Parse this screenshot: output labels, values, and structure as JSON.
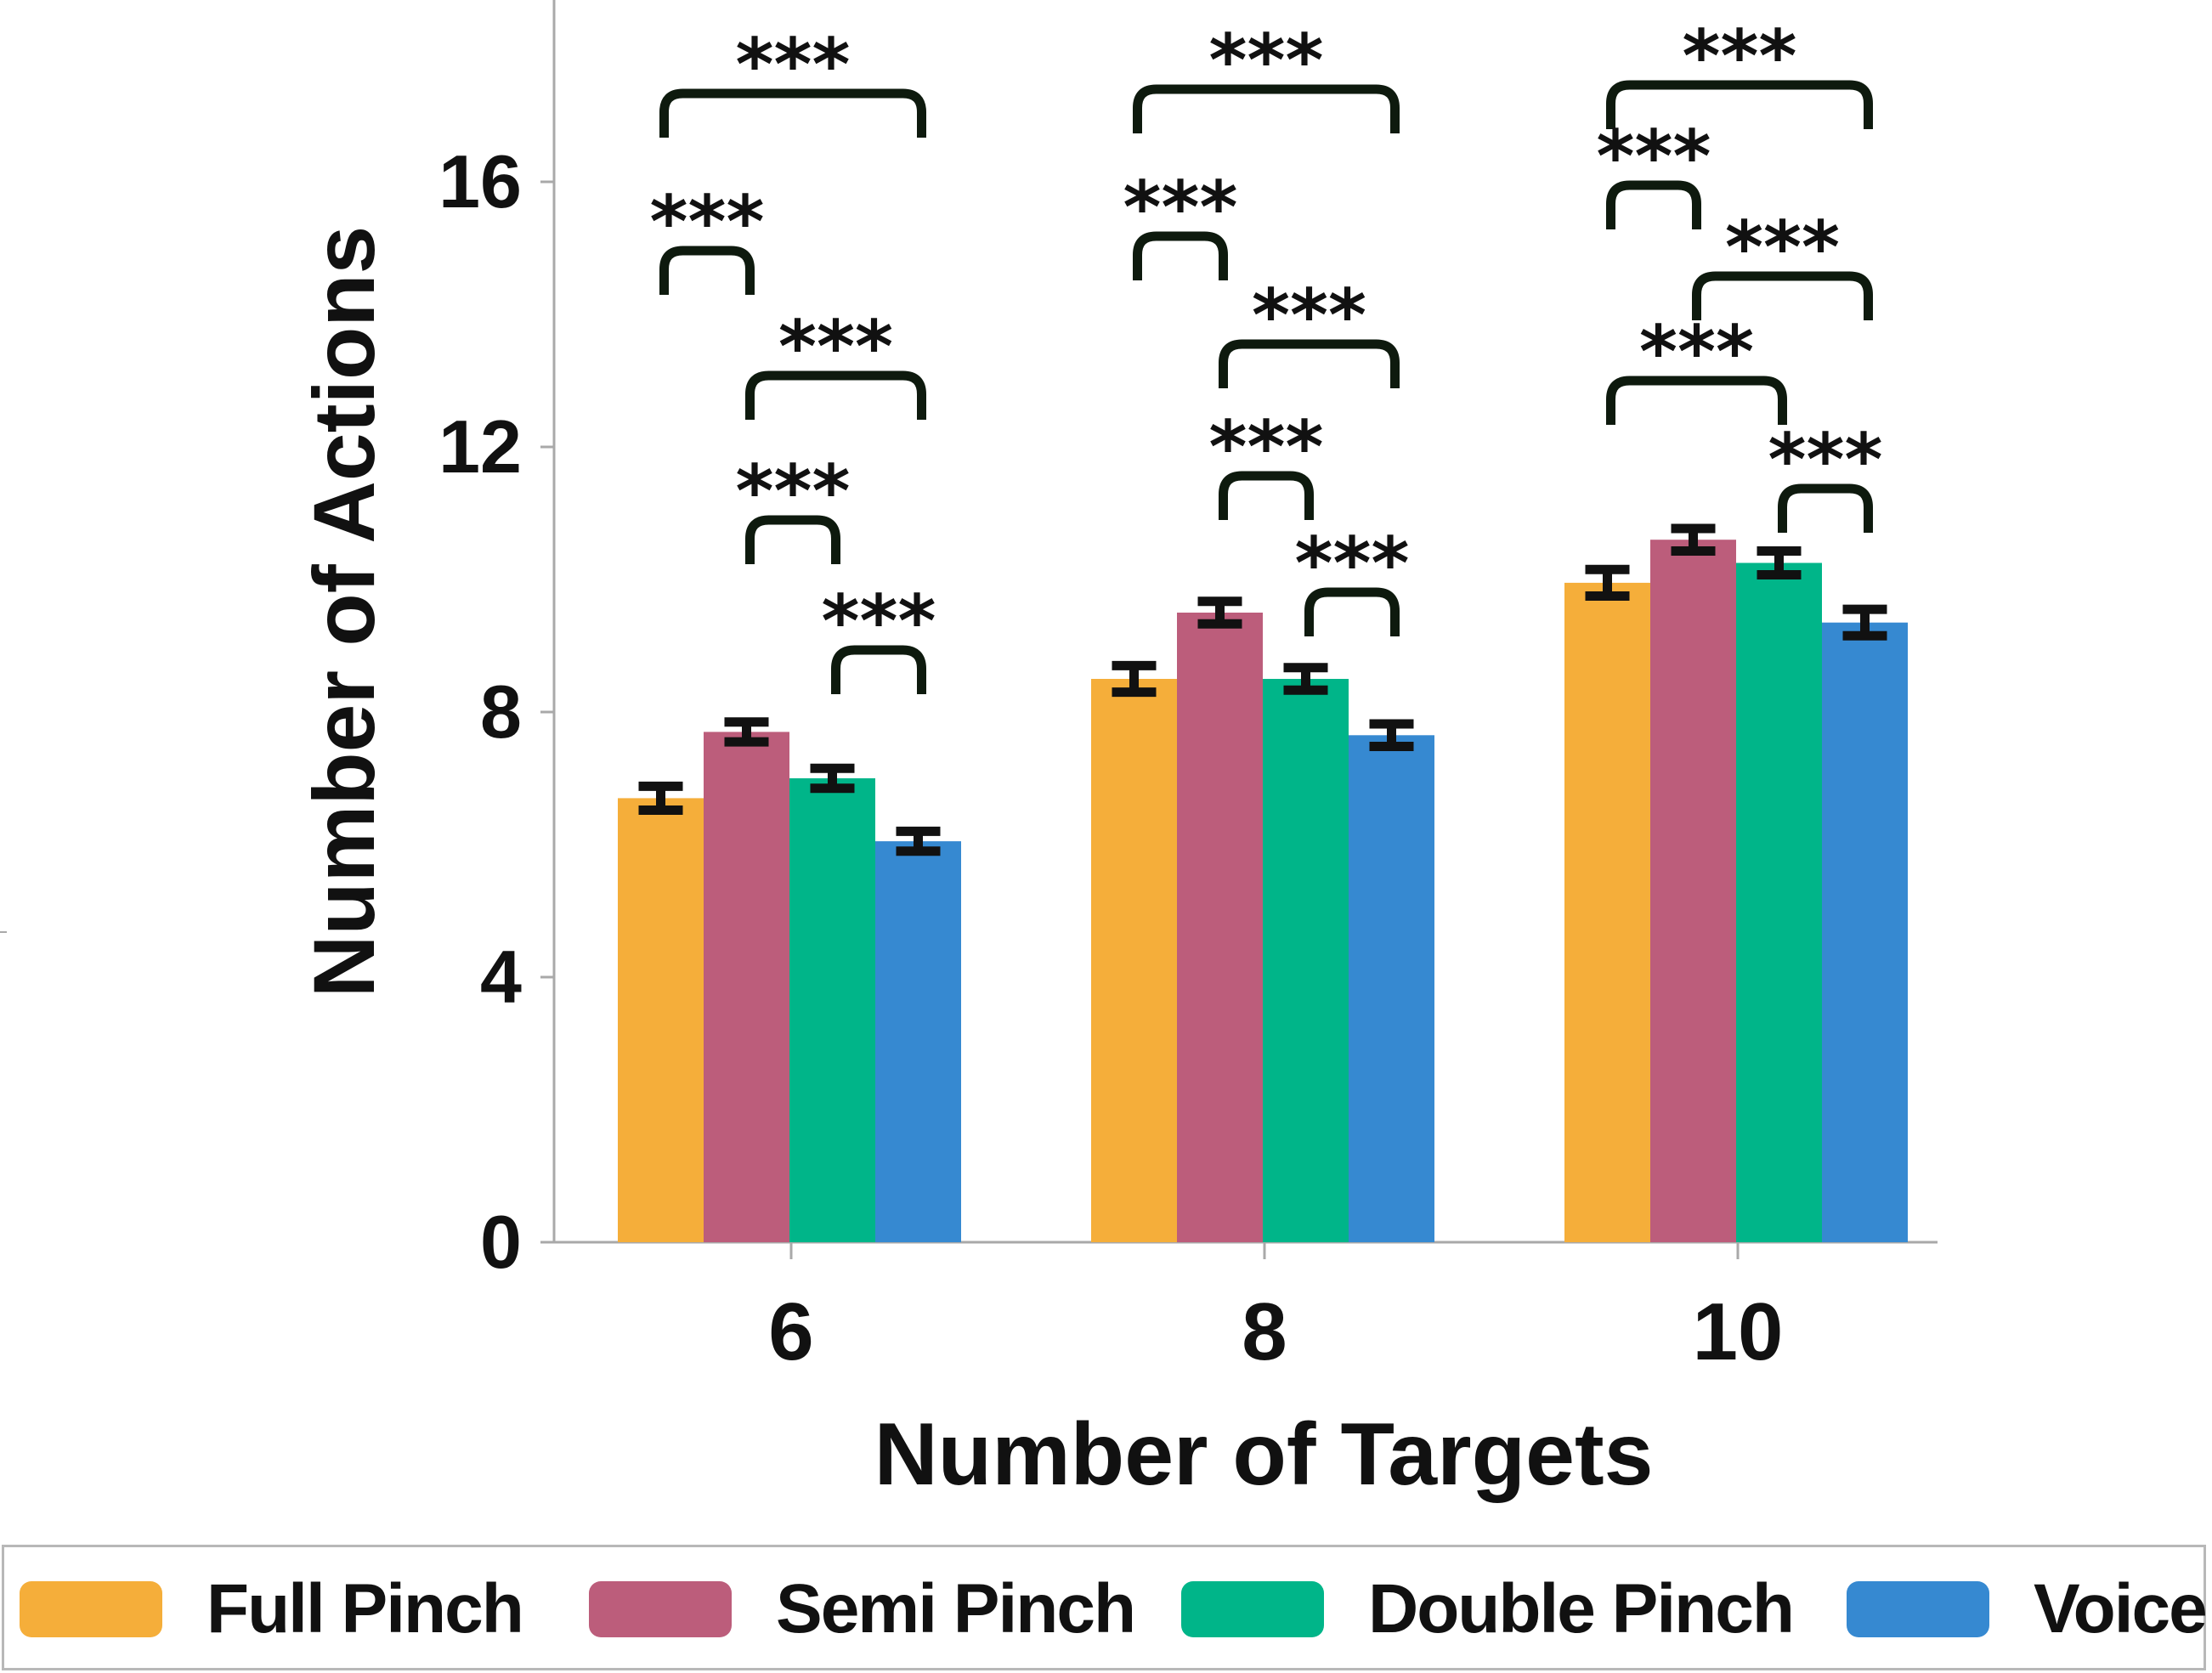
{
  "chart_data": {
    "type": "bar",
    "title": "",
    "xlabel": "Number of Targets",
    "ylabel": "Number of Actions",
    "categories": [
      "6",
      "8",
      "10"
    ],
    "ylim": [
      0,
      19
    ],
    "yticks": [
      0,
      4,
      8,
      12,
      16
    ],
    "series": [
      {
        "name": "Full Pinch",
        "color": "#F5AE3A",
        "values": [
          6.7,
          8.5,
          9.95
        ],
        "error": [
          0.18,
          0.2,
          0.2
        ]
      },
      {
        "name": "Semi Pinch",
        "color": "#BC5D7B",
        "values": [
          7.7,
          9.5,
          10.6
        ],
        "error": [
          0.15,
          0.17,
          0.17
        ]
      },
      {
        "name": "Double Pinch",
        "color": "#00B589",
        "values": [
          7.0,
          8.5,
          10.25
        ],
        "error": [
          0.15,
          0.17,
          0.18
        ]
      },
      {
        "name": "Voice",
        "color": "#3689D1",
        "values": [
          6.05,
          7.65,
          9.35
        ],
        "error": [
          0.15,
          0.17,
          0.2
        ]
      }
    ],
    "significance": [
      {
        "category": "6",
        "from": "Full Pinch",
        "to": "Voice",
        "label": "***"
      },
      {
        "category": "6",
        "from": "Full Pinch",
        "to": "Semi Pinch",
        "label": "***"
      },
      {
        "category": "6",
        "from": "Semi Pinch",
        "to": "Voice",
        "label": "***"
      },
      {
        "category": "6",
        "from": "Semi Pinch",
        "to": "Double Pinch",
        "label": "***"
      },
      {
        "category": "6",
        "from": "Double Pinch",
        "to": "Voice",
        "label": "***"
      },
      {
        "category": "8",
        "from": "Full Pinch",
        "to": "Voice",
        "label": "***"
      },
      {
        "category": "8",
        "from": "Full Pinch",
        "to": "Semi Pinch",
        "label": "***"
      },
      {
        "category": "8",
        "from": "Semi Pinch",
        "to": "Voice",
        "label": "***"
      },
      {
        "category": "8",
        "from": "Semi Pinch",
        "to": "Double Pinch",
        "label": "***"
      },
      {
        "category": "8",
        "from": "Double Pinch",
        "to": "Voice",
        "label": "***"
      },
      {
        "category": "10",
        "from": "Full Pinch",
        "to": "Voice",
        "label": "***"
      },
      {
        "category": "10",
        "from": "Full Pinch",
        "to": "Semi Pinch",
        "label": "***"
      },
      {
        "category": "10",
        "from": "Semi Pinch",
        "to": "Voice",
        "label": "***"
      },
      {
        "category": "10",
        "from": "Full Pinch",
        "to": "Double Pinch",
        "label": "***"
      },
      {
        "category": "10",
        "from": "Double Pinch",
        "to": "Voice",
        "label": "***"
      }
    ],
    "legend": "bottom"
  }
}
